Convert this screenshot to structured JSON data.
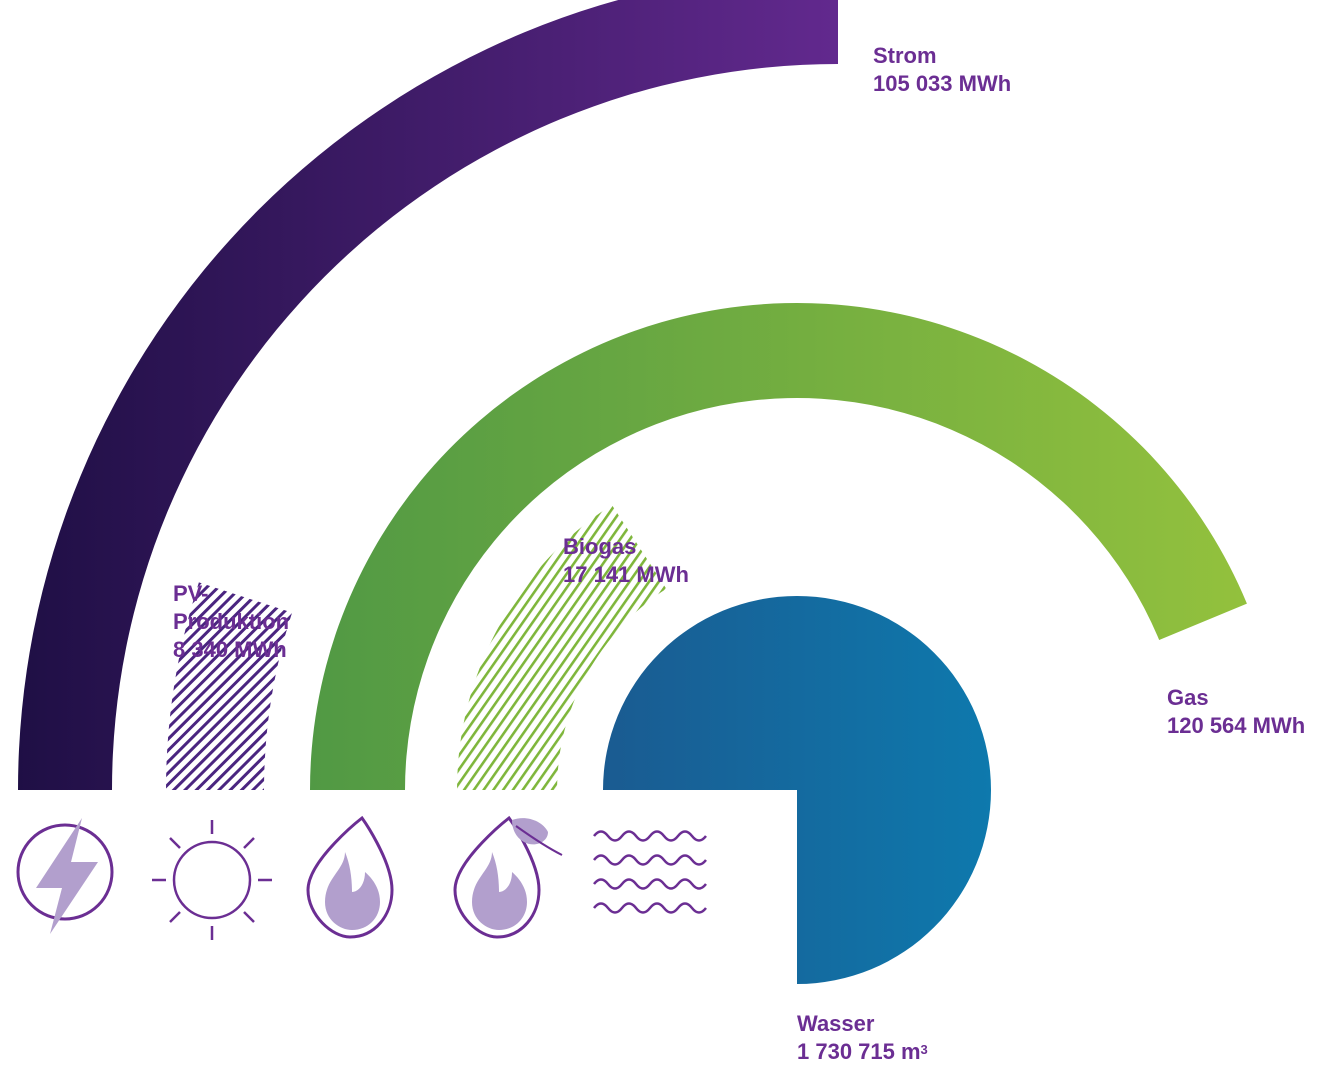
{
  "chart_data": {
    "type": "radial-bar",
    "title": "",
    "series": [
      {
        "name": "Strom",
        "value": 105033,
        "value_label": "105 033 MWh",
        "unit": "MWh",
        "color_from": "#1f0f45",
        "color_to": "#62298e",
        "fill": "solid",
        "icon": "lightning-icon"
      },
      {
        "name": "PV-Produktion",
        "name_line1": "PV-",
        "name_line2": "Produktion",
        "value": 8340,
        "value_label": "8 340 MWh",
        "unit": "MWh",
        "color": "#4a2580",
        "fill": "hatched",
        "icon": "sun-icon"
      },
      {
        "name": "Gas",
        "value": 120564,
        "value_label": "120 564 MWh",
        "unit": "MWh",
        "color_from": "#519944",
        "color_to": "#93c13d",
        "fill": "solid",
        "icon": "flame-drop-icon"
      },
      {
        "name": "Biogas",
        "value": 17141,
        "value_label": "17 141 MWh",
        "unit": "MWh",
        "color": "#7fb63c",
        "fill": "hatched",
        "icon": "biogas-leaf-drop-icon"
      },
      {
        "name": "Wasser",
        "value": 1730715,
        "value_label_number": "1 730 715 m",
        "value_label_sup": "3",
        "unit": "m³",
        "color_from": "#1a5b91",
        "color_to": "#0e79ad",
        "fill": "solid",
        "icon": "water-waves-icon"
      }
    ]
  },
  "colors": {
    "label": "#6b2e93",
    "icon_fill": "#b29fcd",
    "icon_stroke": "#6b2e93"
  }
}
